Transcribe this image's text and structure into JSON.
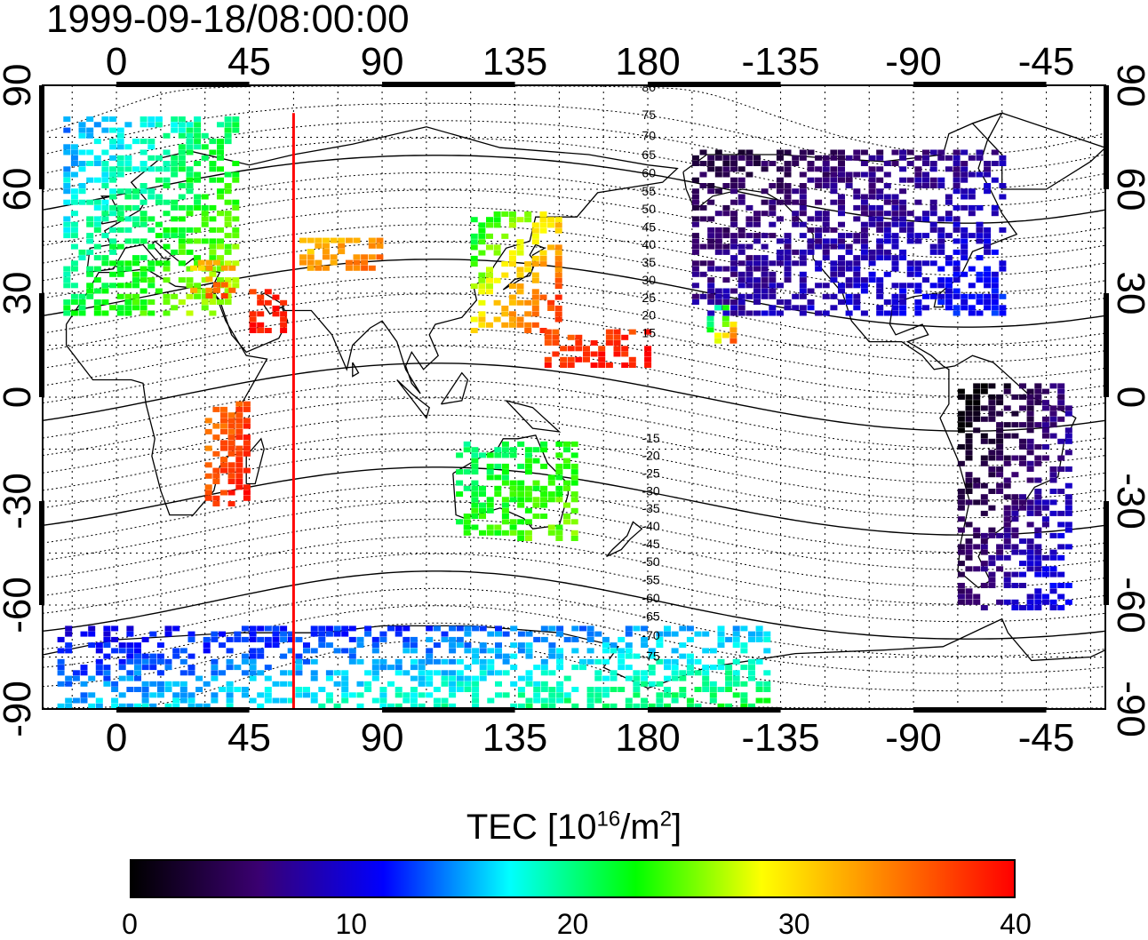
{
  "title": "1999-09-18/08:00:00",
  "map": {
    "top_lon_ticks": [
      "0",
      "45",
      "90",
      "135",
      "180",
      "-135",
      "-90",
      "-45"
    ],
    "bottom_lon_ticks": [
      "0",
      "45",
      "90",
      "135",
      "180",
      "-135",
      "-90",
      "-45"
    ],
    "left_lat_ticks": [
      "90",
      "60",
      "30",
      "0",
      "-30",
      "-60",
      "-90"
    ],
    "right_lat_ticks": [
      "90",
      "60",
      "30",
      "0",
      "-30",
      "-60",
      "-90"
    ],
    "lon_range": [
      -25,
      335
    ],
    "lat_range": [
      -90,
      90
    ],
    "grid": true,
    "marker_line_lon": 60,
    "marker_line_color": "#ff0000",
    "magnetic_latitude_labels": [
      "80",
      "75",
      "70",
      "65",
      "60",
      "55",
      "50",
      "45",
      "40",
      "35",
      "30",
      "25",
      "20",
      "15",
      "-15",
      "-20",
      "-25",
      "-30",
      "-35",
      "-40",
      "-45",
      "-50",
      "-55",
      "-60",
      "-65",
      "-70",
      "-75"
    ]
  },
  "colorbar": {
    "label_main": "TEC  [10",
    "label_exp": "16",
    "label_mid": "/m",
    "label_exp2": "2",
    "label_end": "]",
    "ticks": [
      "0",
      "10",
      "20",
      "30",
      "40"
    ],
    "range": [
      0,
      40
    ],
    "colors": [
      "#000000",
      "#3a0070",
      "#0000ff",
      "#00ffff",
      "#00ff00",
      "#ffff00",
      "#ff8000",
      "#ff0000"
    ]
  },
  "tec_regions": [
    {
      "name": "europe",
      "lon": [
        -18,
        40
      ],
      "lat": [
        25,
        82
      ],
      "tec": [
        14,
        28
      ]
    },
    {
      "name": "mediterranean",
      "lon": [
        25,
        40
      ],
      "lat": [
        30,
        40
      ],
      "tec": [
        30,
        38
      ]
    },
    {
      "name": "middle-east",
      "lon": [
        45,
        58
      ],
      "lat": [
        20,
        32
      ],
      "tec": [
        38,
        40
      ]
    },
    {
      "name": "central-asia",
      "lon": [
        62,
        88
      ],
      "lat": [
        38,
        47
      ],
      "tec": [
        30,
        36
      ]
    },
    {
      "name": "east-asia",
      "lon": [
        120,
        150
      ],
      "lat": [
        20,
        55
      ],
      "tec": [
        20,
        40
      ]
    },
    {
      "name": "north-america",
      "lon": [
        195,
        300
      ],
      "lat": [
        25,
        72
      ],
      "tec": [
        3,
        12
      ]
    },
    {
      "name": "south-america",
      "lon": [
        285,
        322
      ],
      "lat": [
        -60,
        5
      ],
      "tec": [
        0,
        12
      ]
    },
    {
      "name": "australia",
      "lon": [
        115,
        155
      ],
      "lat": [
        -40,
        -12
      ],
      "tec": [
        20,
        26
      ]
    },
    {
      "name": "antarctica",
      "lon": [
        -20,
        220
      ],
      "lat": [
        -90,
        -66
      ],
      "tec": [
        10,
        22
      ]
    },
    {
      "name": "africa-east",
      "lon": [
        30,
        45
      ],
      "lat": [
        -30,
        0
      ],
      "tec": [
        34,
        40
      ]
    },
    {
      "name": "pacific",
      "lon": [
        145,
        180
      ],
      "lat": [
        10,
        20
      ],
      "tec": [
        36,
        40
      ]
    },
    {
      "name": "hawaii",
      "lon": [
        200,
        210
      ],
      "lat": [
        17,
        28
      ],
      "tec": [
        14,
        38
      ]
    }
  ]
}
